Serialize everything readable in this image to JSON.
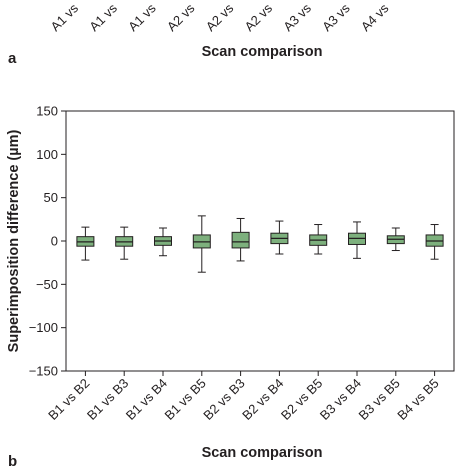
{
  "top_panel": {
    "letter": "a",
    "xlabel": "Scan comparison",
    "categories_visible": [
      "A1 vs",
      "A1 vs",
      "A1 vs",
      "A2 vs",
      "A2 vs",
      "A2 vs",
      "A3 vs",
      "A3 vs",
      "A4 vs"
    ]
  },
  "bottom_panel": {
    "letter": "b"
  },
  "chart_data": {
    "type": "box",
    "title": "",
    "xlabel": "Scan comparison",
    "ylabel": "Superimposition difference (µm)",
    "ylim": [
      -150,
      150
    ],
    "yticks": [
      150,
      100,
      50,
      0,
      -50,
      -100,
      -150
    ],
    "ytick_labels": [
      "150",
      "100",
      "50",
      "0",
      "−50",
      "−100",
      "−150"
    ],
    "box_color": "#7db07d",
    "categories": [
      "B1 vs B2",
      "B1 vs B3",
      "B1 vs B4",
      "B1 vs B5",
      "B2 vs B3",
      "B2 vs B4",
      "B2 vs B5",
      "B3 vs B4",
      "B3 vs B5",
      "B4 vs B5"
    ],
    "boxes": [
      {
        "min": -22,
        "q1": -6,
        "median": -1,
        "q3": 5,
        "max": 16
      },
      {
        "min": -21,
        "q1": -6,
        "median": -1,
        "q3": 5,
        "max": 16
      },
      {
        "min": -17,
        "q1": -5,
        "median": 0,
        "q3": 5,
        "max": 15
      },
      {
        "min": -36,
        "q1": -8,
        "median": -1,
        "q3": 7,
        "max": 29
      },
      {
        "min": -23,
        "q1": -8,
        "median": -1,
        "q3": 10,
        "max": 26
      },
      {
        "min": -15,
        "q1": -3,
        "median": 3,
        "q3": 9,
        "max": 23
      },
      {
        "min": -15,
        "q1": -5,
        "median": 1,
        "q3": 7,
        "max": 19
      },
      {
        "min": -20,
        "q1": -4,
        "median": 3,
        "q3": 9,
        "max": 22
      },
      {
        "min": -11,
        "q1": -3,
        "median": 2,
        "q3": 6,
        "max": 15
      },
      {
        "min": -21,
        "q1": -6,
        "median": 0,
        "q3": 7,
        "max": 19
      }
    ]
  }
}
